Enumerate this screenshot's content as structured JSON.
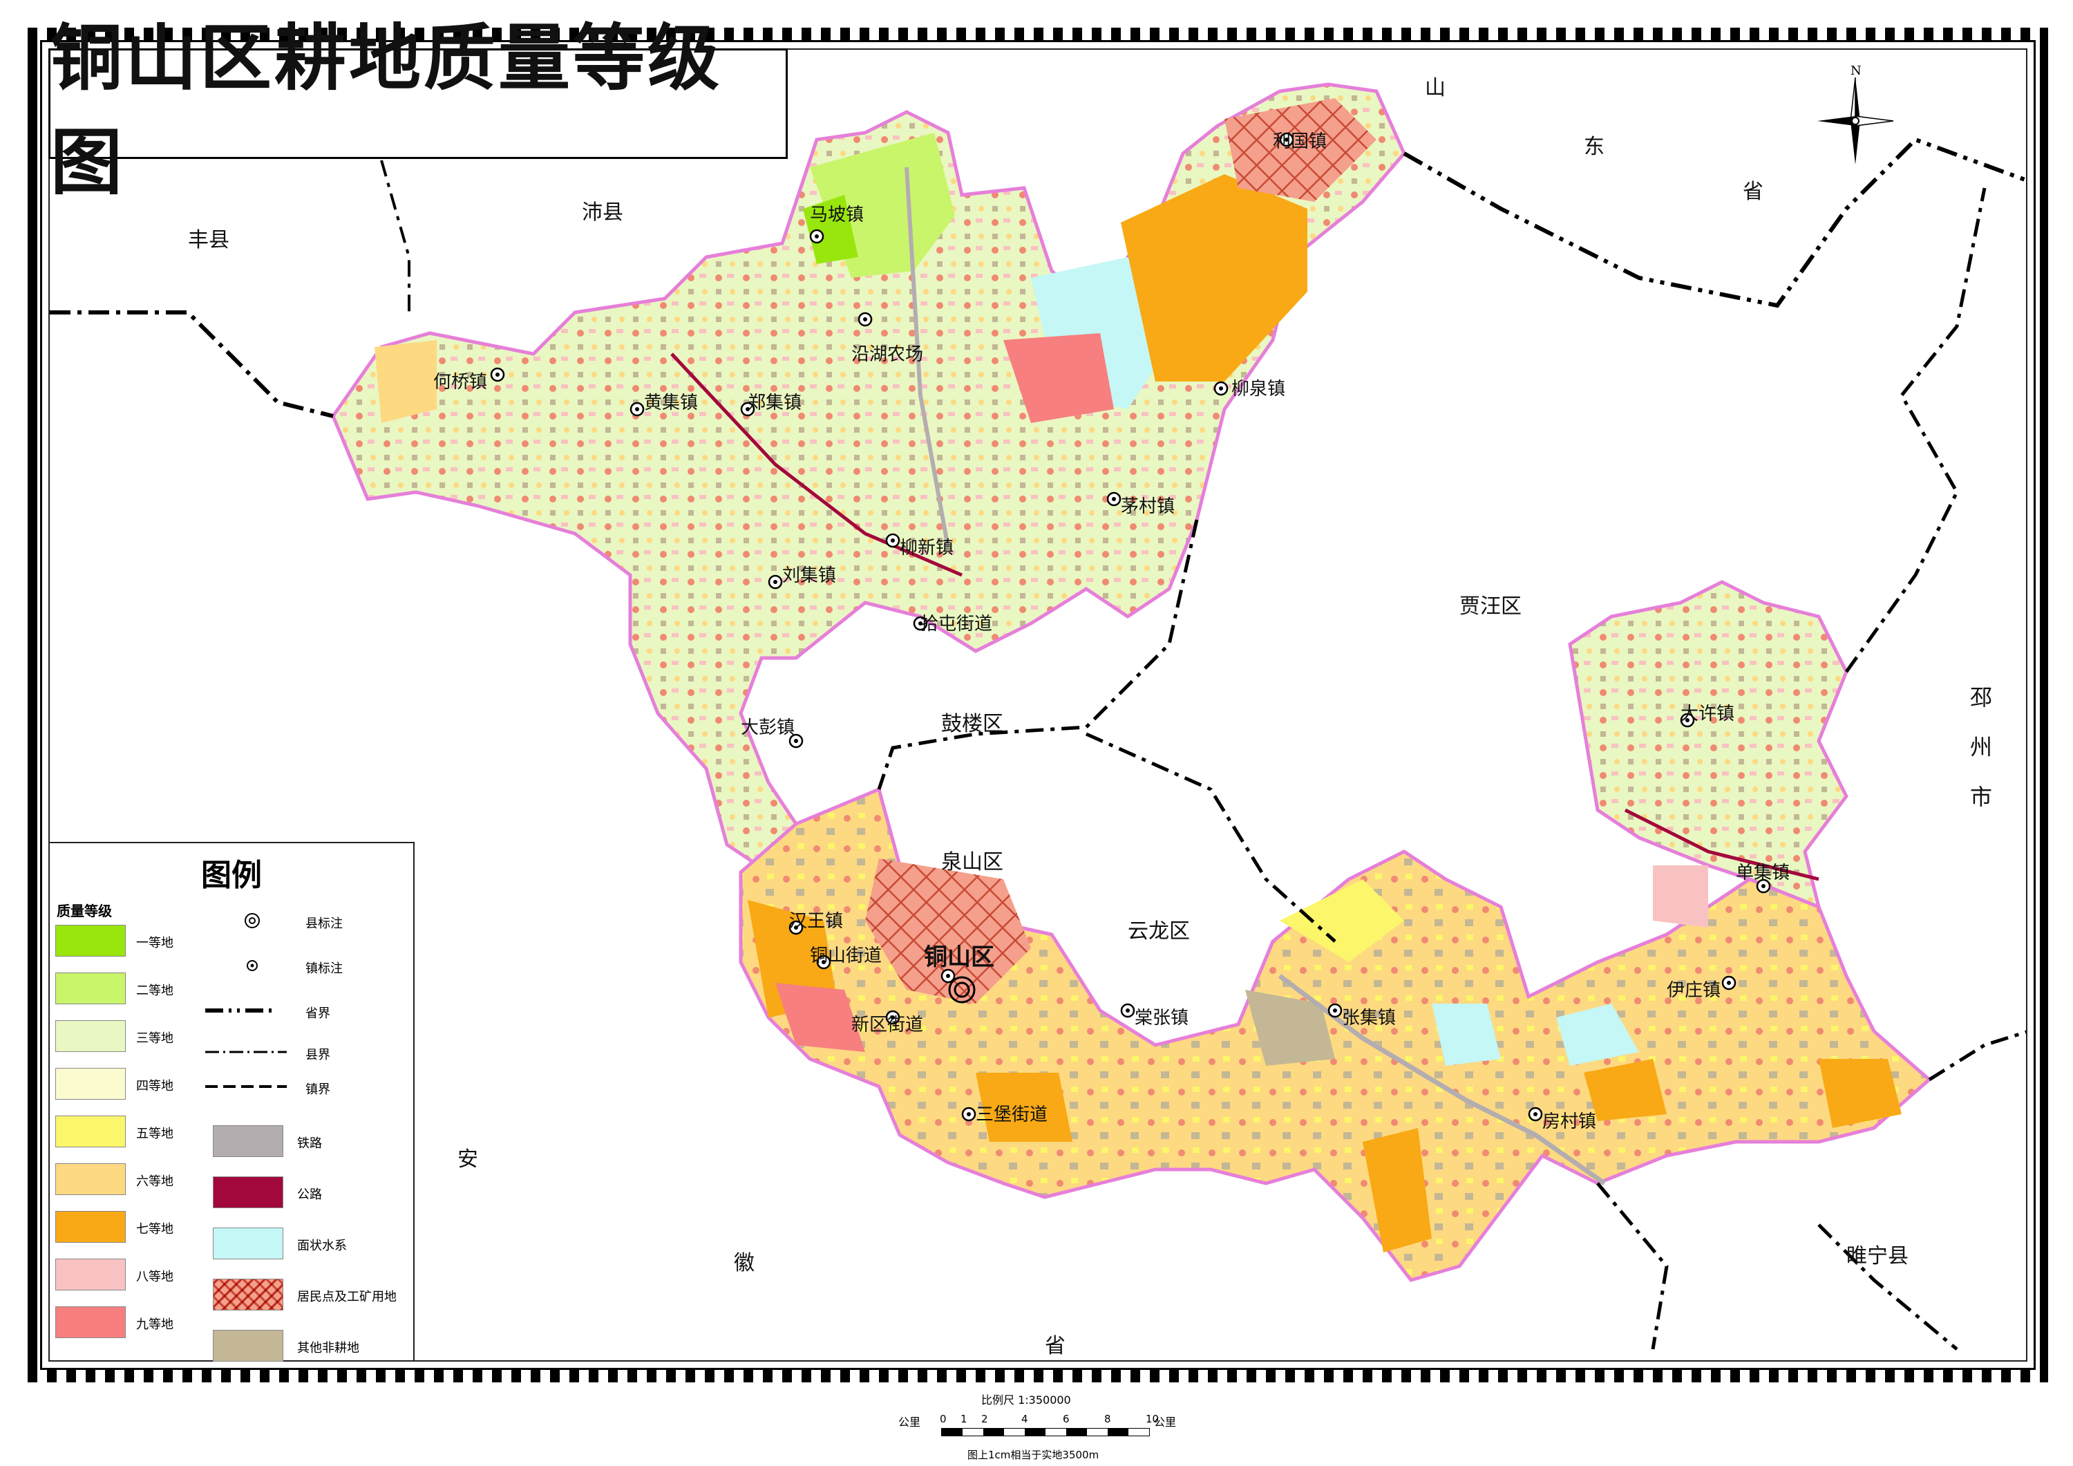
{
  "title": "铜山区耕地质量等级图",
  "colors": {
    "grade1": "#99e60e",
    "grade2": "#c9f56b",
    "grade3": "#e9f7c2",
    "grade4": "#fbfbcf",
    "grade5": "#fbf66a",
    "grade6": "#fdd982",
    "grade7": "#f8a915",
    "grade8": "#f9c2c2",
    "grade9": "#f77f7f",
    "rail": "#b4adb0",
    "road": "#a3083c",
    "water": "#c4f7f5",
    "settlement": "#f08a72",
    "other_nonarable": "#c3b795",
    "county_outline": "#e67fd9"
  },
  "surrounding_regions": [
    {
      "name": "丰县"
    },
    {
      "name": "沛县"
    },
    {
      "name": "山"
    },
    {
      "name": "东"
    },
    {
      "name": "省"
    },
    {
      "name": "贾汪区"
    },
    {
      "name": "鼓楼区"
    },
    {
      "name": "泉山区"
    },
    {
      "name": "云龙区"
    },
    {
      "name": "邳州市"
    },
    {
      "name": "睢宁县"
    },
    {
      "name": "安"
    },
    {
      "name": "徽"
    },
    {
      "name": "省"
    }
  ],
  "towns": [
    {
      "name": "利国镇"
    },
    {
      "name": "马坡镇"
    },
    {
      "name": "沿湖农场"
    },
    {
      "name": "何桥镇"
    },
    {
      "name": "黄集镇"
    },
    {
      "name": "郑集镇"
    },
    {
      "name": "柳泉镇"
    },
    {
      "name": "茅村镇"
    },
    {
      "name": "柳新镇"
    },
    {
      "name": "刘集镇"
    },
    {
      "name": "拾屯街道"
    },
    {
      "name": "大彭镇"
    },
    {
      "name": "汉王镇"
    },
    {
      "name": "铜山街道"
    },
    {
      "name": "铜山区"
    },
    {
      "name": "新区街道"
    },
    {
      "name": "棠张镇"
    },
    {
      "name": "三堡街道"
    },
    {
      "name": "张集镇"
    },
    {
      "name": "房村镇"
    },
    {
      "name": "伊庄镇"
    },
    {
      "name": "单集镇"
    },
    {
      "name": "大许镇"
    }
  ],
  "legend": {
    "title": "图例",
    "subtitle": "质量等级",
    "grades": [
      {
        "label": "一等地",
        "color_key": "grade1"
      },
      {
        "label": "二等地",
        "color_key": "grade2"
      },
      {
        "label": "三等地",
        "color_key": "grade3"
      },
      {
        "label": "四等地",
        "color_key": "grade4"
      },
      {
        "label": "五等地",
        "color_key": "grade5"
      },
      {
        "label": "六等地",
        "color_key": "grade6"
      },
      {
        "label": "七等地",
        "color_key": "grade7"
      },
      {
        "label": "八等地",
        "color_key": "grade8"
      },
      {
        "label": "九等地",
        "color_key": "grade9"
      }
    ],
    "symbols": [
      {
        "label": "县标注",
        "icon": "county-seat-icon"
      },
      {
        "label": "镇标注",
        "icon": "town-seat-icon"
      },
      {
        "label": "省界",
        "icon": "province-boundary-line"
      },
      {
        "label": "县界",
        "icon": "county-boundary-line"
      },
      {
        "label": "镇界",
        "icon": "town-boundary-line"
      }
    ],
    "areas": [
      {
        "label": "铁路",
        "color_key": "rail"
      },
      {
        "label": "公路",
        "color_key": "road"
      },
      {
        "label": "面状水系",
        "color_key": "water"
      },
      {
        "label": "居民点及工矿用地",
        "color_key": "settlement"
      },
      {
        "label": "其他非耕地",
        "color_key": "other_nonarable"
      }
    ]
  },
  "scale": {
    "ratio_text": "比例尺  1:350000",
    "unit_left": "公里",
    "unit_right": "公里",
    "ticks": [
      "0",
      "1",
      "2",
      "4",
      "6",
      "8",
      "10"
    ],
    "note": "图上1cm相当于实地3500m"
  },
  "north_label": "N"
}
